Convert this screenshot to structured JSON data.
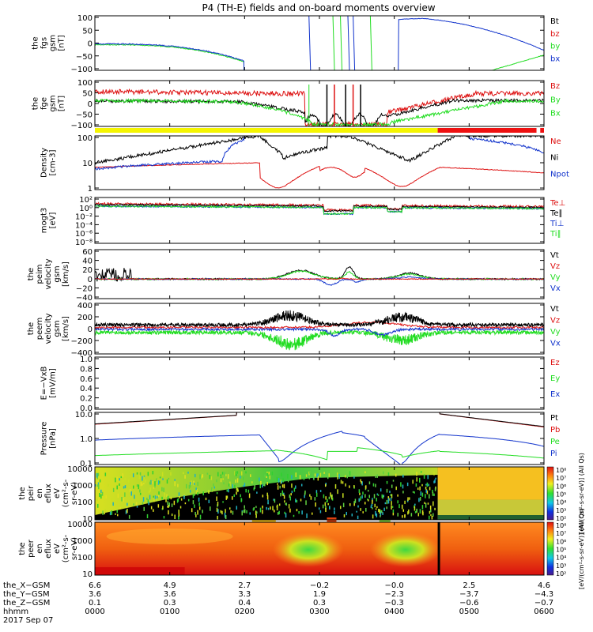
{
  "title": "P4 (TH-E) fields and on-board moments overview",
  "colors": {
    "black": "#000000",
    "red": "#dd1111",
    "green": "#22dd22",
    "blue": "#1133cc",
    "yellow": "#f5f500",
    "barred": "#ee1111"
  },
  "panels": [
    {
      "id": "fgs",
      "ylabel": [
        "the",
        "fgs",
        "gsm",
        "[nT]"
      ],
      "ticks": [
        "100",
        "50",
        "0",
        "−50",
        "−100"
      ],
      "legend": [
        {
          "text": "Bt",
          "color": "black"
        },
        {
          "text": "bz",
          "color": "red"
        },
        {
          "text": "by",
          "color": "green"
        },
        {
          "text": "bx",
          "color": "blue"
        }
      ]
    },
    {
      "id": "fge",
      "ylabel": [
        "the",
        "fge",
        "gsm",
        "[nT]"
      ],
      "ticks": [
        "100",
        "50",
        "0",
        "−50",
        "−100"
      ],
      "legend": [
        {
          "text": "Bz",
          "color": "red"
        },
        {
          "text": "By",
          "color": "green"
        },
        {
          "text": "Bx",
          "color": "green"
        }
      ]
    },
    {
      "id": "density",
      "ylabel": [
        "Density",
        "[cm-3]"
      ],
      "ticks": [
        "100",
        "10",
        "1"
      ],
      "legend": [
        {
          "text": "Ne",
          "color": "red"
        },
        {
          "text": "Ni",
          "color": "black"
        },
        {
          "text": "Npot",
          "color": "blue"
        }
      ]
    },
    {
      "id": "temp",
      "ylabel": [
        "mogt3",
        "[eV]"
      ],
      "ticks": [
        "10²",
        "10⁰",
        "10⁻²",
        "10⁻⁴",
        "10⁻⁶",
        "10⁻⁸"
      ],
      "legend": [
        {
          "text": "Te⊥",
          "color": "red"
        },
        {
          "text": "Te∥",
          "color": "black"
        },
        {
          "text": "Ti⊥",
          "color": "blue"
        },
        {
          "text": "Ti∥",
          "color": "green"
        }
      ]
    },
    {
      "id": "peim",
      "ylabel": [
        "the",
        "peim",
        "velocity",
        "gsm",
        "[km/s]"
      ],
      "ticks": [
        "60",
        "40",
        "20",
        "0",
        "−20",
        "−40"
      ],
      "legend": [
        {
          "text": "Vt",
          "color": "black"
        },
        {
          "text": "Vz",
          "color": "red"
        },
        {
          "text": "Vy",
          "color": "green"
        },
        {
          "text": "Vx",
          "color": "blue"
        }
      ]
    },
    {
      "id": "peem",
      "ylabel": [
        "the",
        "peem",
        "velocity",
        "gsm",
        "[km/s]"
      ],
      "ticks": [
        "400",
        "200",
        "0",
        "−200",
        "−400"
      ],
      "legend": [
        {
          "text": "Vt",
          "color": "black"
        },
        {
          "text": "Vz",
          "color": "red"
        },
        {
          "text": "Vy",
          "color": "green"
        },
        {
          "text": "Vx",
          "color": "blue"
        }
      ]
    },
    {
      "id": "efield",
      "ylabel": [
        "E=−VxB",
        "[mV/m]"
      ],
      "ticks": [
        "1.0",
        "0.8",
        "0.6",
        "0.4",
        "0.2",
        "0.0"
      ],
      "legend": [
        {
          "text": "Ez",
          "color": "red"
        },
        {
          "text": "Ey",
          "color": "green"
        },
        {
          "text": "Ex",
          "color": "blue"
        }
      ]
    },
    {
      "id": "pressure",
      "ylabel": [
        "Pressure",
        "[nPa]"
      ],
      "ticks": [
        "10.0",
        "1.0",
        "0.1"
      ],
      "legend": [
        {
          "text": "Pt",
          "color": "black"
        },
        {
          "text": "Pb",
          "color": "red"
        },
        {
          "text": "Pe",
          "color": "green"
        },
        {
          "text": "Pi",
          "color": "blue"
        }
      ]
    },
    {
      "id": "peir",
      "ylabel": [
        "the",
        "peir",
        "en",
        "eflux",
        "eV",
        "(cm²-s-",
        "sr-eV)"
      ],
      "ticks": [
        "10000",
        "1000",
        "100",
        "10"
      ],
      "legend": []
    },
    {
      "id": "peer",
      "ylabel": [
        "the",
        "peer",
        "en",
        "eflux",
        "eV",
        "(cm²-s-",
        "sr-eV)"
      ],
      "ticks": [
        "10000",
        "1000",
        "100",
        "10"
      ],
      "legend": []
    }
  ],
  "colorbars": [
    {
      "ticks": [
        "10⁸",
        "10⁷",
        "10⁶",
        "10⁵",
        "10⁴",
        "10³",
        "10²"
      ],
      "label": "[eV/(cm²-s-sr-eV)] (All Qs)"
    },
    {
      "ticks": [
        "10⁸",
        "10⁷",
        "10⁶",
        "10⁵",
        "10⁴",
        "10³",
        "10²"
      ],
      "label": "[eV/(cm²-s-sr-eV)] (All Qs)"
    }
  ],
  "footer": {
    "labels": [
      "the_X−GSM",
      "the_Y−GSM",
      "the_Z−GSM",
      "hhmm",
      "2017 Sep 07"
    ],
    "rows": [
      [
        "6.6",
        "4.9",
        "2.7",
        "−0.2",
        "−0.0",
        "2.5",
        "4.6"
      ],
      [
        "3.6",
        "3.6",
        "3.3",
        "1.9",
        "−2.3",
        "−3.7",
        "−4.3"
      ],
      [
        "0.1",
        "0.3",
        "0.4",
        "0.3",
        "−0.3",
        "−0.6",
        "−0.7"
      ],
      [
        "0000",
        "0100",
        "0200",
        "0300",
        "0400",
        "0500",
        "0600"
      ]
    ]
  },
  "chart_data": {
    "type": "line",
    "title": "P4 (TH-E) fields and on-board moments overview",
    "x": [
      "0000",
      "0100",
      "0200",
      "0300",
      "0400",
      "0500",
      "0600"
    ],
    "xlabel": "hhmm",
    "date": "2017 Sep 07",
    "panels": [
      {
        "name": "the fgs gsm [nT]",
        "ylim": [
          -100,
          100
        ],
        "series": [
          {
            "name": "bx",
            "color": "blue",
            "values": [
              -3,
              -14,
              -70,
              100,
              100,
              85,
              30
            ]
          },
          {
            "name": "by",
            "color": "green",
            "values": [
              -5,
              -16,
              -60,
              -100,
              -100,
              -100,
              -40
            ]
          },
          {
            "name": "bz",
            "color": "red",
            "values": [
              -3,
              -12,
              -55,
              -100,
              -100,
              -100,
              -30
            ]
          }
        ]
      },
      {
        "name": "the fge gsm [nT]",
        "ylim": [
          -130,
          100
        ],
        "series": [
          {
            "name": "Bz",
            "color": "red",
            "values": [
              45,
              48,
              45,
              10,
              0,
              20,
              35
            ]
          },
          {
            "name": "Bt",
            "color": "black",
            "values": [
              0,
              0,
              -5,
              -40,
              -70,
              0,
              0
            ]
          },
          {
            "name": "By",
            "color": "green",
            "values": [
              0,
              -2,
              -25,
              -110,
              -90,
              -5,
              0
            ]
          }
        ]
      },
      {
        "name": "Density [cm-3]",
        "scale": "log",
        "ylim": [
          0.5,
          200
        ],
        "series": [
          {
            "name": "Ni",
            "color": "black",
            "values": [
              10,
              50,
              200,
              15,
              20,
              200,
              30
            ]
          },
          {
            "name": "Ne",
            "color": "red",
            "values": [
              6,
              8,
              10,
              0.6,
              0.8,
              6,
              3
            ]
          },
          {
            "name": "Npot",
            "color": "blue",
            "values": [
              5,
              12,
              100,
              200,
              200,
              150,
              20
            ]
          }
        ]
      },
      {
        "name": "mogt3 [eV]",
        "scale": "log",
        "series": [
          {
            "name": "Te⊥",
            "color": "red",
            "values": [
              150,
              100,
              100,
              60,
              80,
              100,
              120
            ]
          },
          {
            "name": "Te∥",
            "color": "black",
            "values": [
              150,
              100,
              100,
              60,
              80,
              100,
              120
            ]
          },
          {
            "name": "Ti⊥",
            "color": "blue",
            "values": [
              150,
              100,
              100,
              40,
              50,
              100,
              120
            ]
          },
          {
            "name": "Ti∥",
            "color": "green",
            "values": [
              150,
              100,
              100,
              40,
              50,
              100,
              120
            ]
          }
        ]
      },
      {
        "name": "the peim velocity gsm [km/s]",
        "ylim": [
          -40,
          60
        ],
        "series": [
          {
            "name": "Vt",
            "color": "black",
            "values": [
              10,
              0,
              0,
              20,
              5,
              0,
              0
            ]
          },
          {
            "name": "Vz",
            "color": "red",
            "values": [
              0,
              0,
              0,
              2,
              0,
              0,
              0
            ]
          },
          {
            "name": "Vy",
            "color": "green",
            "values": [
              0,
              0,
              0,
              18,
              10,
              0,
              0
            ]
          },
          {
            "name": "Vx",
            "color": "blue",
            "values": [
              0,
              0,
              0,
              -10,
              -5,
              0,
              0
            ]
          }
        ]
      },
      {
        "name": "the peem velocity gsm [km/s]",
        "ylim": [
          -400,
          400
        ],
        "series": [
          {
            "name": "Vt",
            "color": "black",
            "values": [
              80,
              70,
              60,
              250,
              200,
              90,
              60
            ]
          },
          {
            "name": "Vz",
            "color": "red",
            "values": [
              0,
              0,
              0,
              60,
              100,
              0,
              0
            ]
          },
          {
            "name": "Vy",
            "color": "green",
            "values": [
              0,
              0,
              -50,
              -150,
              -100,
              0,
              0
            ]
          },
          {
            "name": "Vx",
            "color": "blue",
            "values": [
              0,
              0,
              0,
              -50,
              -80,
              0,
              0
            ]
          }
        ]
      },
      {
        "name": "E=−VxB [mV/m]",
        "ylim": [
          0,
          1
        ],
        "series": []
      },
      {
        "name": "Pressure [nPa]",
        "scale": "log",
        "ylim": [
          0.05,
          30
        ],
        "series": [
          {
            "name": "Pt",
            "color": "black",
            "values": [
              7,
              12,
              20,
              20,
              20,
              20,
              5
            ]
          },
          {
            "name": "Pb",
            "color": "red",
            "values": [
              7,
              12,
              20,
              20,
              20,
              20,
              5
            ]
          },
          {
            "name": "Pi",
            "color": "blue",
            "values": [
              1,
              1.5,
              2,
              0.07,
              0.06,
              1.5,
              0.4
            ]
          },
          {
            "name": "Pe",
            "color": "green",
            "values": [
              0.15,
              0.2,
              0.3,
              0.1,
              0.3,
              0.2,
              0.1
            ]
          }
        ]
      }
    ],
    "spectrograms": [
      {
        "name": "the peir en eflux",
        "ylim": [
          10,
          20000
        ],
        "scale": "log"
      },
      {
        "name": "the peer en eflux",
        "ylim": [
          10,
          20000
        ],
        "scale": "log"
      }
    ]
  }
}
